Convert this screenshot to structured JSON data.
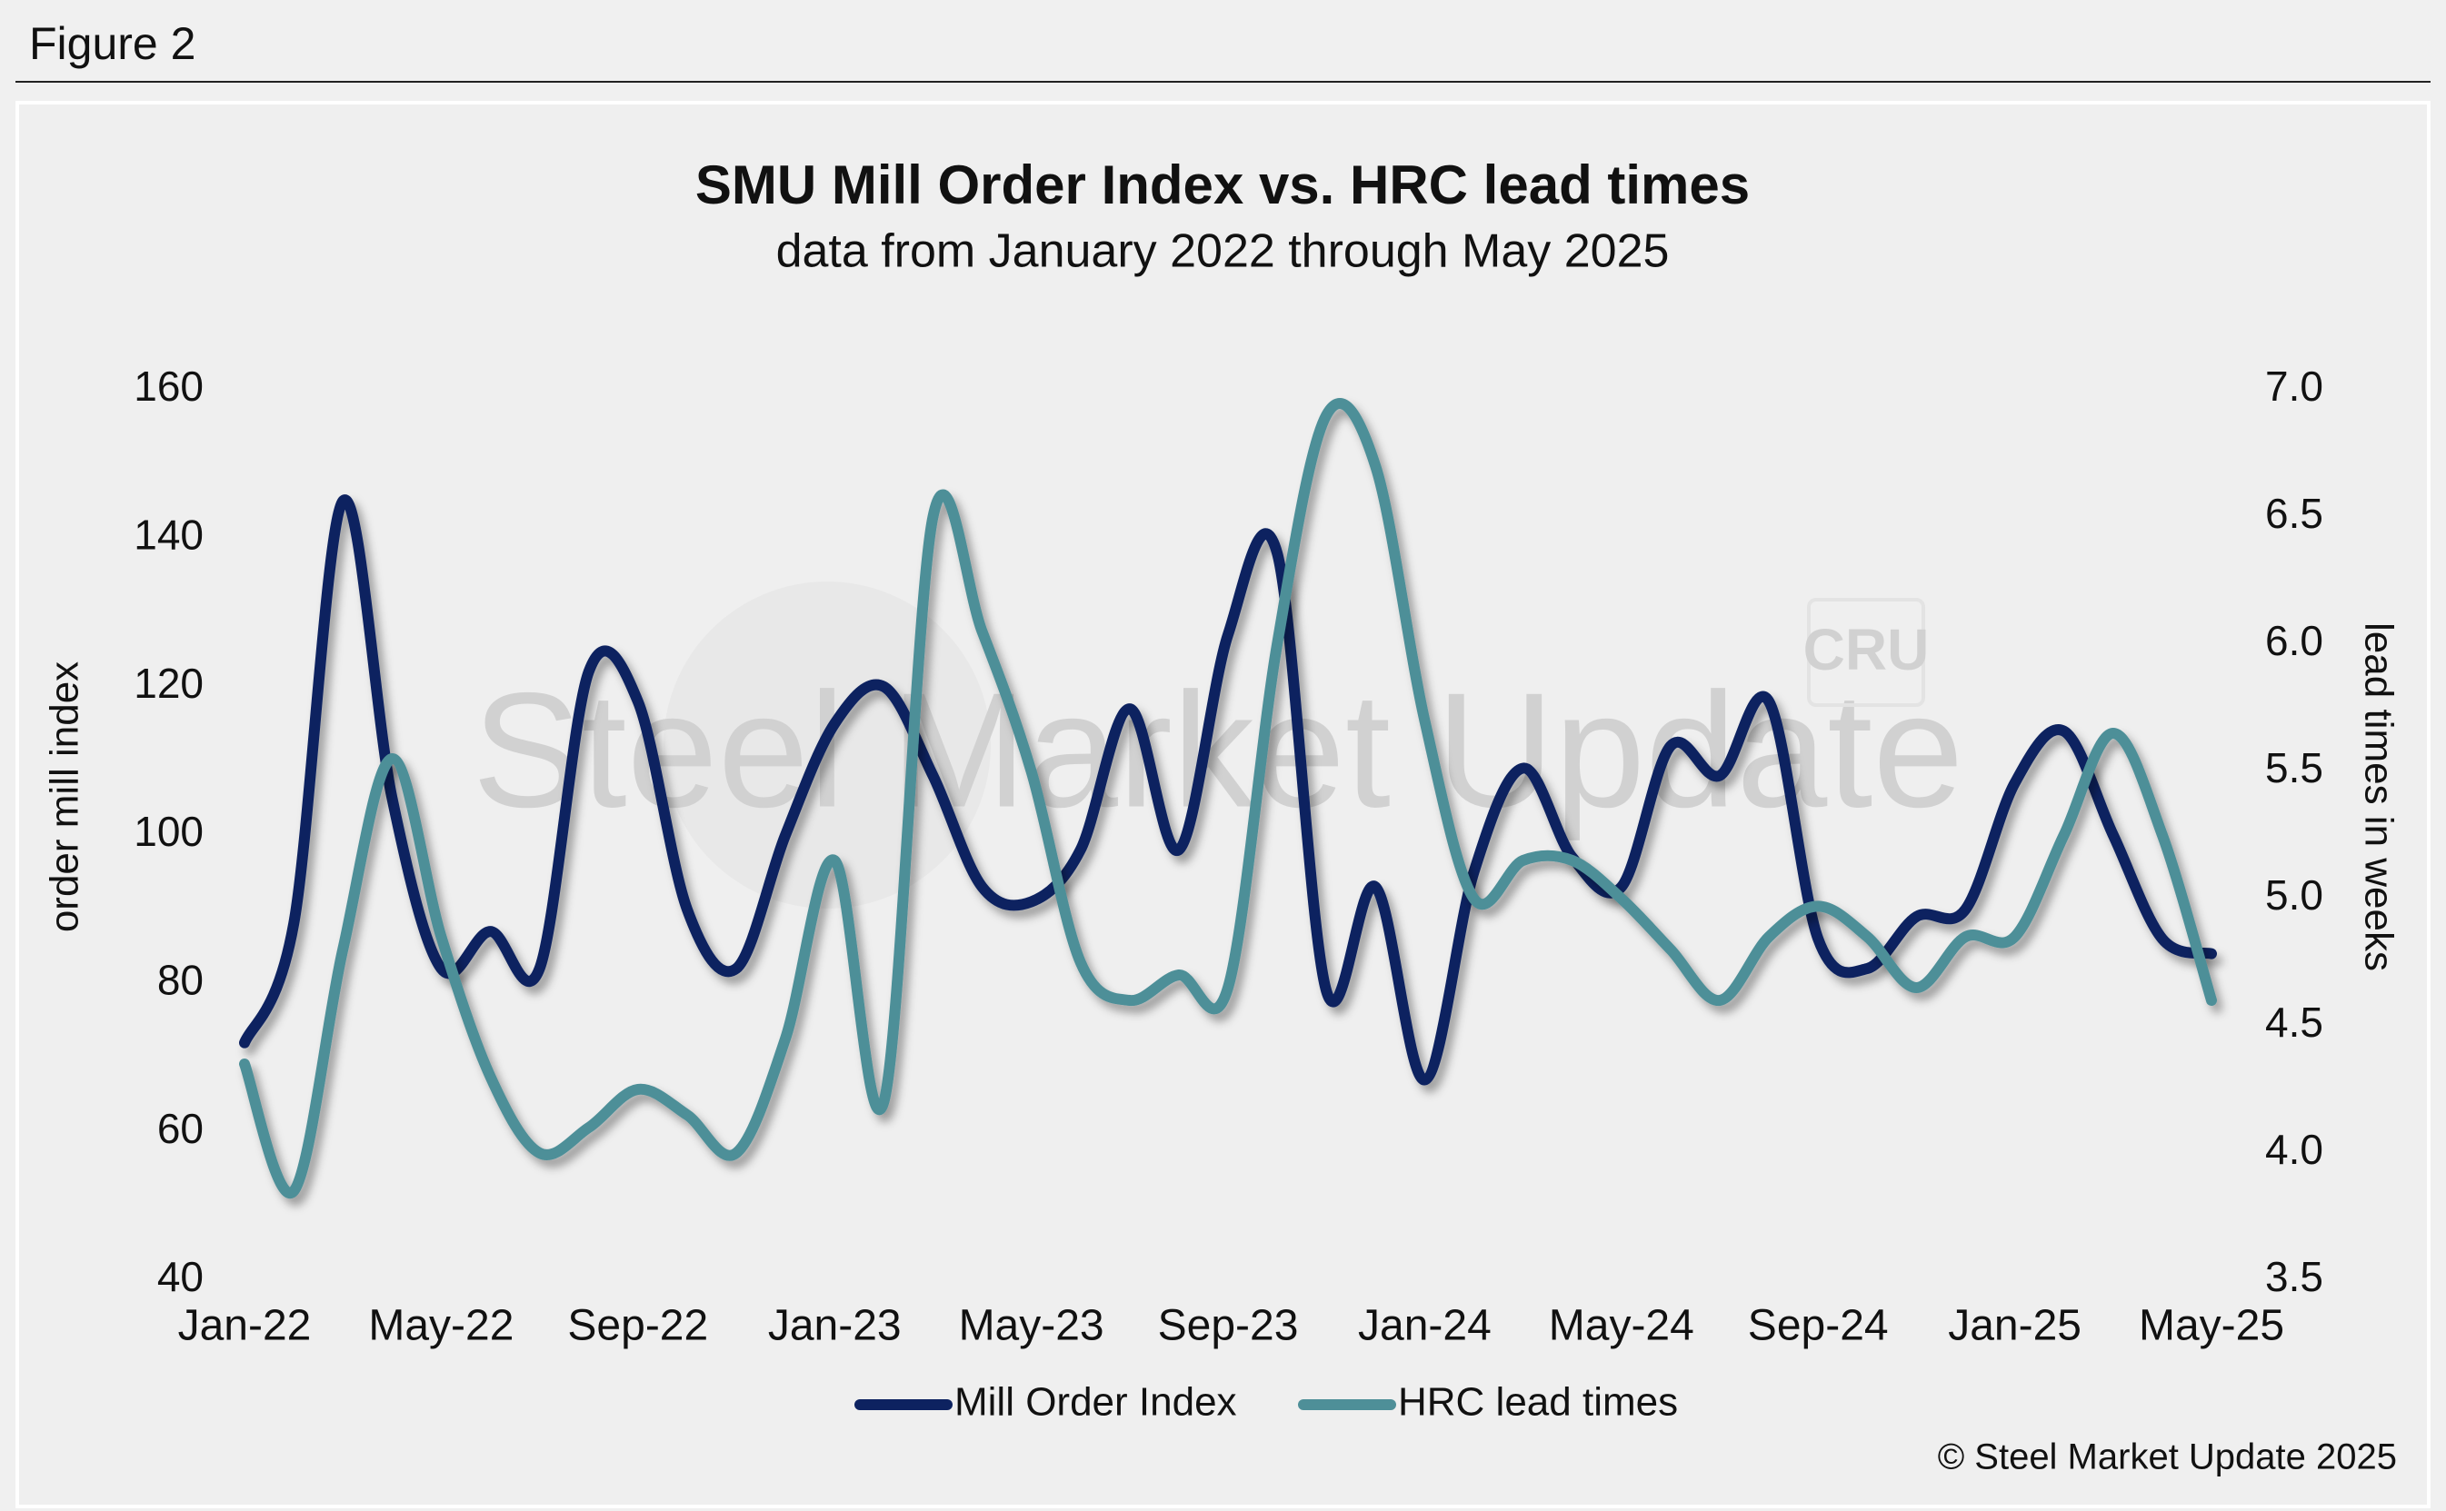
{
  "figure_label": "Figure 2",
  "chart_data": {
    "type": "line",
    "title": "SMU Mill Order Index vs. HRC lead times",
    "subtitle": "data from January 2022 through May 2025",
    "y_label": "order mill index",
    "y2_label": "lead times in weeks",
    "watermark": "Steel Market Update",
    "watermark_logo": "CRU",
    "source": "© Steel Market Update 2025",
    "categories": [
      "Jan-22",
      null,
      null,
      null,
      "May-22",
      null,
      null,
      null,
      "Sep-22",
      null,
      null,
      null,
      "Jan-23",
      null,
      null,
      null,
      "May-23",
      null,
      null,
      null,
      "Sep-23",
      null,
      null,
      null,
      "Jan-24",
      null,
      null,
      null,
      "May-24",
      null,
      null,
      null,
      "Sep-24",
      null,
      null,
      null,
      "Jan-25",
      null,
      null,
      null,
      "May-25"
    ],
    "ylim": [
      40,
      160
    ],
    "yticks": [
      40,
      60,
      80,
      100,
      120,
      140,
      160
    ],
    "y2lim": [
      3.5,
      7.0
    ],
    "y2ticks": [
      3.5,
      {
        "value": 4.0,
        "label": "4.0"
      },
      4.5,
      {
        "value": 5.0,
        "label": "5.0"
      },
      5.5,
      {
        "value": 6.0,
        "label": "6.0"
      },
      6.5,
      {
        "value": 7.0,
        "label": "7.0"
      }
    ],
    "grid": false,
    "legend": "bottom",
    "series": [
      {
        "name": "Mill Order Index",
        "color": "#0d2260",
        "axis": "y",
        "values": [
          72,
          88,
          145,
          105,
          82,
          87,
          82,
          122,
          118,
          90,
          82,
          100,
          115,
          120,
          108,
          93,
          91,
          98,
          117,
          98,
          127,
          138,
          79,
          93,
          67,
          95,
          109,
          97,
          93,
          112,
          108,
          118,
          86,
          82,
          89,
          90,
          107,
          114,
          100,
          86,
          84
        ]
      },
      {
        "name": "HRC lead times",
        "color": "#4e8f98",
        "axis": "y2",
        "values": [
          4.35,
          3.85,
          4.8,
          5.55,
          4.85,
          4.3,
          4.0,
          4.1,
          4.25,
          4.15,
          4.0,
          4.45,
          5.15,
          4.2,
          6.5,
          6.05,
          5.5,
          4.75,
          4.6,
          4.7,
          4.65,
          6.0,
          6.9,
          6.7,
          5.7,
          5.0,
          5.15,
          5.15,
          5.0,
          4.8,
          4.6,
          4.85,
          4.97,
          4.85,
          4.65,
          4.85,
          4.85,
          5.25,
          5.65,
          5.25,
          4.6
        ]
      }
    ]
  }
}
